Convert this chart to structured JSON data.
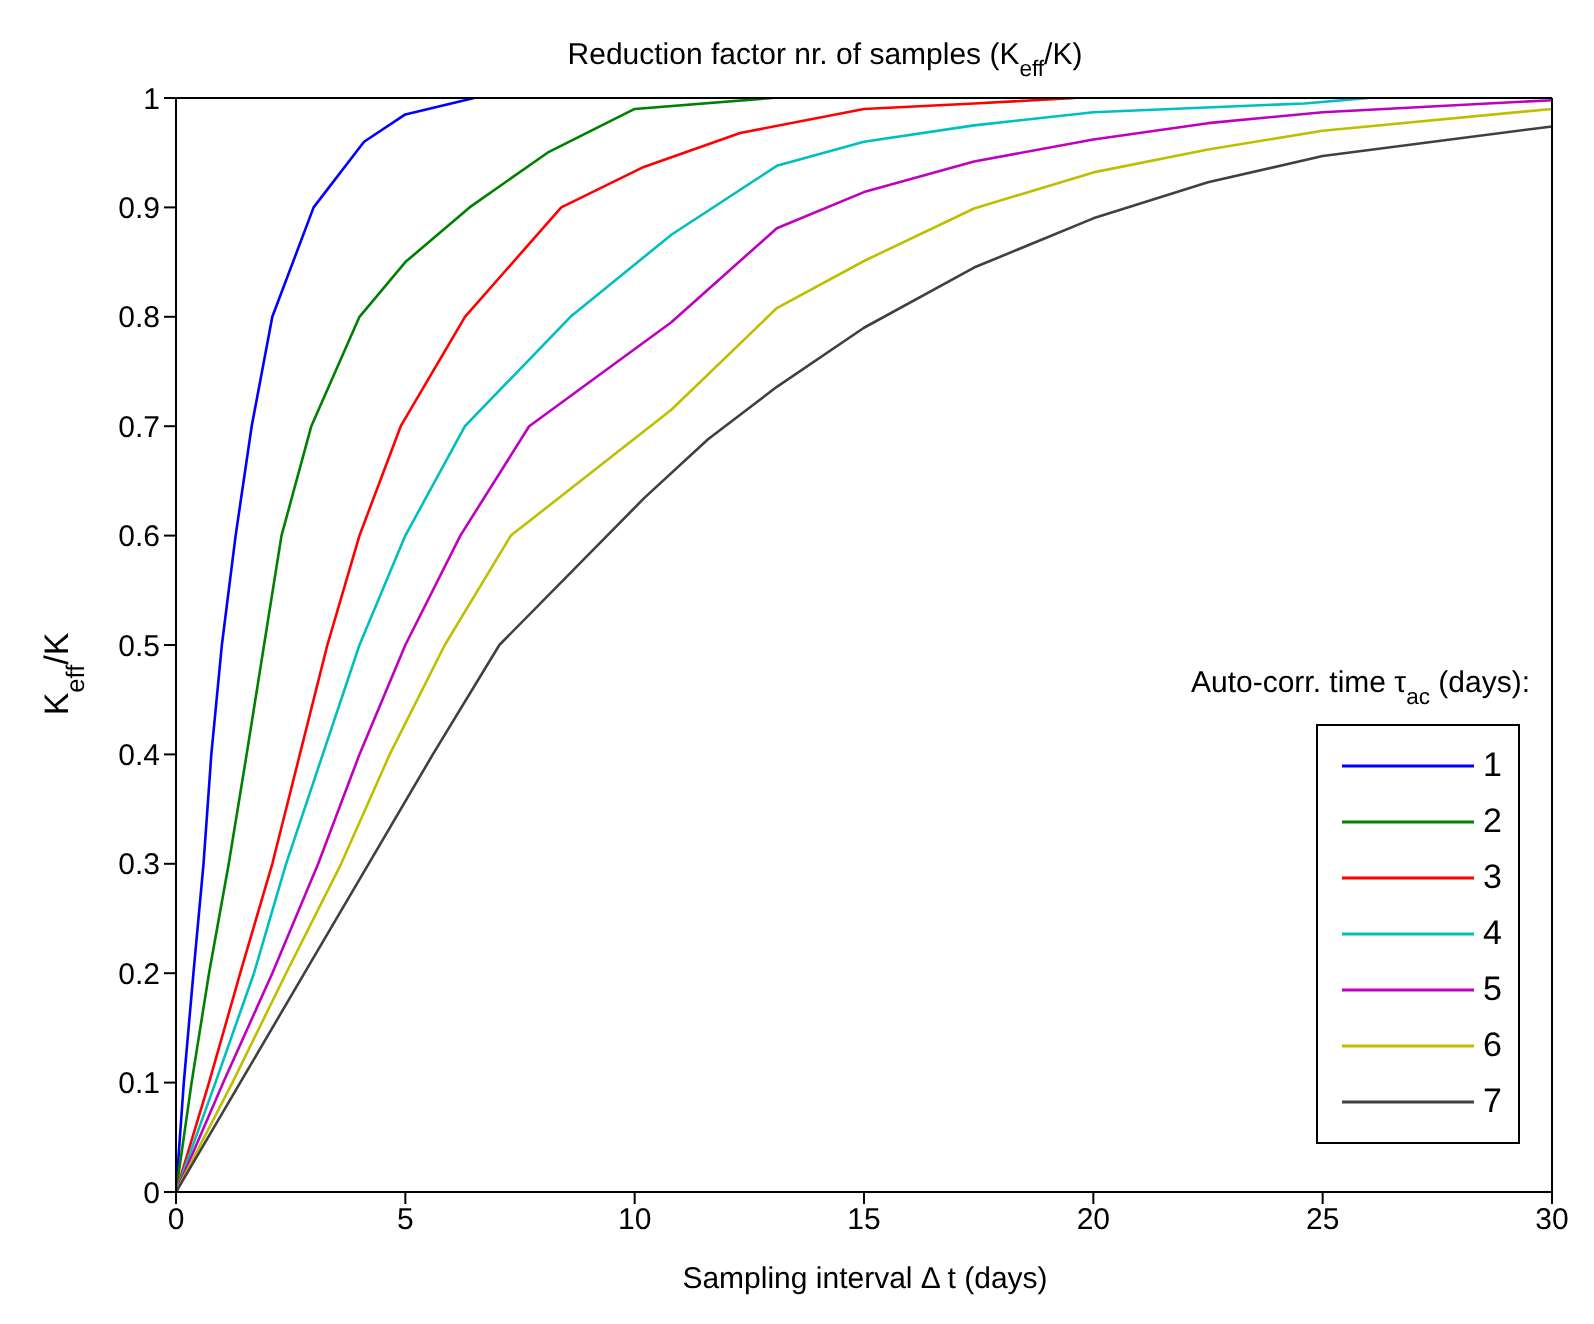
{
  "chart_data": {
    "type": "line",
    "title": "Reduction factor nr. of samples (K$_{eff}$/K)",
    "xlabel": "Sampling interval Δ t (days)",
    "ylabel": "K$_{eff}$/K",
    "legend_title": "Auto-corr. time τ$_{ac}$ (days):",
    "legend": "bottom right",
    "marker": "none",
    "line_style": "solid",
    "xlim": [
      0,
      30
    ],
    "ylim": [
      0,
      1
    ],
    "xticks": [
      0,
      5,
      10,
      15,
      20,
      25,
      30
    ],
    "yticks": [
      0,
      0.1,
      0.2,
      0.3,
      0.4,
      0.5,
      0.6,
      0.7,
      0.8,
      0.9,
      1
    ],
    "series": [
      {
        "name": "1",
        "color": "#0000ff",
        "x": [
          0,
          0.17,
          0.38,
          0.6,
          0.77,
          1.0,
          1.3,
          1.65,
          2.1,
          3.0,
          4.1,
          5,
          6.5
        ],
        "values": [
          0,
          0.1,
          0.2,
          0.3,
          0.4,
          0.5,
          0.6,
          0.7,
          0.8,
          0.9,
          0.96,
          0.985,
          1.0
        ]
      },
      {
        "name": "2",
        "color": "#008000",
        "x": [
          0,
          0.34,
          0.72,
          1.15,
          1.54,
          1.92,
          2.3,
          2.95,
          4.0,
          5.0,
          6.4,
          8.1,
          10.0,
          13.0
        ],
        "values": [
          0,
          0.1,
          0.2,
          0.3,
          0.4,
          0.5,
          0.6,
          0.7,
          0.8,
          0.85,
          0.9,
          0.95,
          0.99,
          1.0
        ]
      },
      {
        "name": "3",
        "color": "#ff0000",
        "x": [
          0,
          0.72,
          1.4,
          2.1,
          2.7,
          3.3,
          4.0,
          4.9,
          6.3,
          8.4,
          10.2,
          12.3,
          15,
          17.4,
          19.6
        ],
        "values": [
          0,
          0.1,
          0.2,
          0.3,
          0.4,
          0.5,
          0.6,
          0.7,
          0.8,
          0.9,
          0.937,
          0.968,
          0.99,
          0.995,
          1.0
        ]
      },
      {
        "name": "4",
        "color": "#00bfbf",
        "x": [
          0,
          0.86,
          1.7,
          2.4,
          3.2,
          4.0,
          5.0,
          6.3,
          8.6,
          10.8,
          13.1,
          15,
          17.4,
          20,
          24.6,
          26
        ],
        "values": [
          0,
          0.1,
          0.2,
          0.3,
          0.4,
          0.5,
          0.6,
          0.7,
          0.8,
          0.875,
          0.938,
          0.96,
          0.975,
          0.987,
          0.995,
          1.0
        ]
      },
      {
        "name": "5",
        "color": "#bf00bf",
        "x": [
          0,
          1.03,
          2.1,
          3.1,
          4.0,
          5.0,
          6.2,
          7.7,
          10.8,
          13.1,
          15,
          17.4,
          20,
          22.5,
          25,
          30
        ],
        "values": [
          0,
          0.1,
          0.2,
          0.3,
          0.4,
          0.5,
          0.6,
          0.7,
          0.795,
          0.881,
          0.914,
          0.942,
          0.962,
          0.977,
          0.987,
          0.998
        ]
      },
      {
        "name": "6",
        "color": "#bfbf00",
        "x": [
          0,
          1.23,
          2.4,
          3.6,
          4.66,
          5.86,
          7.3,
          10.8,
          13.1,
          15,
          17.4,
          20,
          22.5,
          25,
          30
        ],
        "values": [
          0,
          0.1,
          0.2,
          0.3,
          0.4,
          0.5,
          0.6,
          0.715,
          0.808,
          0.851,
          0.899,
          0.932,
          0.953,
          0.97,
          0.99
        ]
      },
      {
        "name": "7",
        "color": "#404040",
        "x": [
          0,
          1.4,
          2.8,
          4.2,
          5.6,
          7.05,
          10.2,
          11.6,
          13.1,
          15,
          17.4,
          20,
          22.5,
          25,
          30
        ],
        "values": [
          0,
          0.1,
          0.2,
          0.3,
          0.4,
          0.5,
          0.634,
          0.688,
          0.736,
          0.79,
          0.845,
          0.89,
          0.923,
          0.947,
          0.974
        ]
      }
    ]
  }
}
